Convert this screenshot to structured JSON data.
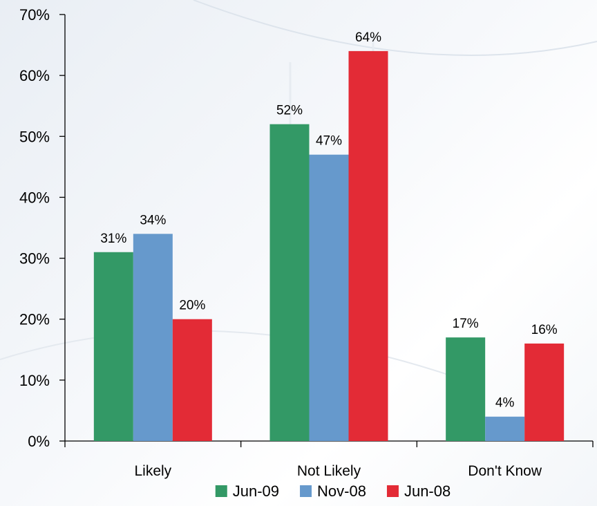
{
  "chart_data": {
    "type": "bar",
    "categories": [
      "Likely",
      "Not Likely",
      "Don't Know"
    ],
    "series": [
      {
        "name": "Jun-09",
        "values": [
          31,
          52,
          17
        ],
        "color": "#339966"
      },
      {
        "name": "Nov-08",
        "values": [
          34,
          47,
          4
        ],
        "color": "#6699cc"
      },
      {
        "name": "Jun-08",
        "values": [
          20,
          64,
          16
        ],
        "color": "#e32b36"
      }
    ],
    "ylim": [
      0,
      70
    ],
    "yticks": [
      0,
      10,
      20,
      30,
      40,
      50,
      60,
      70
    ],
    "ytick_labels": [
      "0%",
      "10%",
      "20%",
      "30%",
      "40%",
      "50%",
      "60%",
      "70%"
    ],
    "data_labels": [
      [
        "31%",
        "52%",
        "17%"
      ],
      [
        "34%",
        "47%",
        "4%"
      ],
      [
        "20%",
        "64%",
        "16%"
      ]
    ],
    "legend_position": "bottom",
    "grid": false
  }
}
